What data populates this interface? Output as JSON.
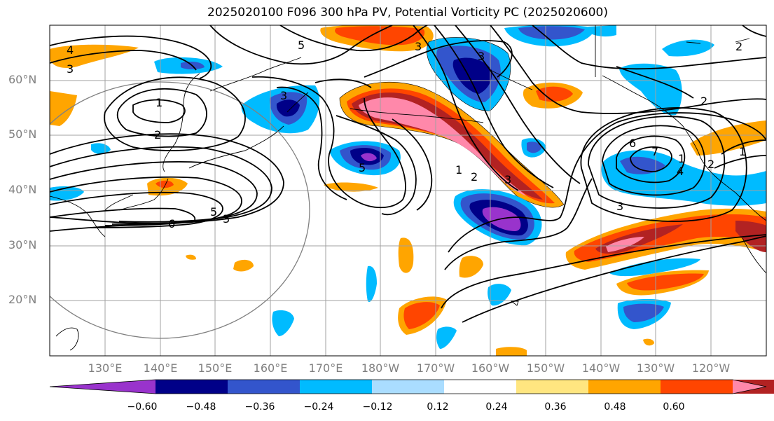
{
  "title": "2025020100 F096 300 hPa PV, Potential Vorticity PC (2025020600)",
  "lat_labels": [
    "60°N",
    "50°N",
    "40°N",
    "30°N",
    "20°N"
  ],
  "lon_labels": [
    "130°E",
    "140°E",
    "150°E",
    "160°E",
    "170°E",
    "180°W",
    "170°W",
    "160°W",
    "150°W",
    "140°W",
    "130°W",
    "120°W"
  ],
  "colorbar": {
    "ticks": [
      "−0.60",
      "−0.48",
      "−0.36",
      "−0.24",
      "−0.12",
      "0.12",
      "0.24",
      "0.36",
      "0.48",
      "0.60"
    ],
    "colors": [
      "#9933cc",
      "#000088",
      "#3355cc",
      "#00bbff",
      "#aaddff",
      "#ffffff",
      "#ffe680",
      "#ffa500",
      "#ff4500",
      "#b22222",
      "#ff88aa"
    ]
  },
  "pv_contour_labels": [
    "5",
    "4",
    "3",
    "1",
    "2",
    "3",
    "6",
    "5",
    "5",
    "3",
    "1",
    "2",
    "3",
    "3",
    "2",
    "6",
    "7",
    "1",
    "4",
    "1",
    "3",
    "2",
    "3",
    "2"
  ]
}
